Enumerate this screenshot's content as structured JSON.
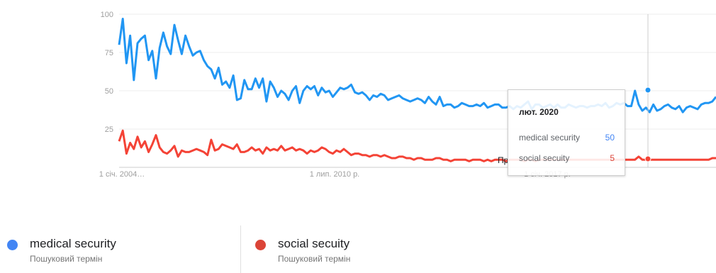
{
  "chart_data": {
    "type": "line",
    "y_ticks": [
      "100",
      "75",
      "50",
      "25"
    ],
    "ylim": [
      0,
      100
    ],
    "x_tick_labels": [
      "1 січ. 2004…",
      "1 лип. 2010 р.",
      "1 січ. 2017 р."
    ],
    "x_range": [
      "2004-01",
      "2020-12"
    ],
    "grid": true,
    "series": [
      {
        "name": "medical security",
        "color": "#2196f3",
        "values": [
          80,
          97,
          68,
          86,
          57,
          81,
          84,
          86,
          70,
          76,
          58,
          78,
          88,
          79,
          74,
          93,
          83,
          74,
          86,
          79,
          73,
          75,
          76,
          70,
          66,
          64,
          58,
          65,
          54,
          56,
          52,
          60,
          44,
          45,
          57,
          51,
          51,
          58,
          52,
          58,
          43,
          56,
          52,
          46,
          50,
          48,
          44,
          50,
          53,
          42,
          50,
          53,
          51,
          53,
          47,
          52,
          49,
          50,
          46,
          49,
          52,
          51,
          52,
          54,
          49,
          48,
          49,
          47,
          44,
          47,
          46,
          48,
          47,
          44,
          45,
          46,
          47,
          45,
          44,
          43,
          44,
          45,
          44,
          42,
          46,
          43,
          41,
          46,
          40,
          41,
          41,
          39,
          40,
          42,
          41,
          40,
          40,
          41,
          40,
          42,
          39,
          40,
          41,
          41,
          39,
          39,
          40,
          38,
          40,
          39,
          41,
          43,
          38,
          41,
          41,
          39,
          40,
          41,
          39,
          41,
          39,
          39,
          41,
          40,
          39,
          40,
          40,
          39,
          40,
          40,
          41,
          40,
          42,
          39,
          40,
          42,
          41,
          42,
          40,
          40,
          50,
          41,
          37,
          39,
          36,
          41,
          37,
          38,
          40,
          41,
          39,
          38,
          40,
          36,
          39,
          40,
          39,
          38,
          41,
          42,
          42,
          43,
          46
        ],
        "values_note_sampled": true
      },
      {
        "name": "social secuity",
        "color": "#f44336",
        "values": [
          17,
          24,
          9,
          16,
          12,
          20,
          13,
          17,
          10,
          15,
          21,
          13,
          10,
          9,
          11,
          14,
          7,
          11,
          10,
          10,
          11,
          12,
          11,
          10,
          8,
          18,
          11,
          12,
          15,
          14,
          13,
          12,
          15,
          10,
          10,
          11,
          13,
          11,
          12,
          9,
          13,
          11,
          12,
          11,
          14,
          11,
          12,
          13,
          11,
          12,
          11,
          9,
          11,
          10,
          11,
          13,
          12,
          10,
          9,
          11,
          10,
          12,
          10,
          8,
          9,
          9,
          8,
          8,
          7,
          8,
          8,
          7,
          8,
          7,
          6,
          6,
          7,
          7,
          6,
          6,
          5,
          6,
          6,
          5,
          5,
          5,
          6,
          6,
          5,
          5,
          4,
          5,
          5,
          5,
          5,
          4,
          5,
          5,
          5,
          4,
          5,
          4,
          5,
          5,
          5,
          4,
          5,
          5,
          5,
          5,
          4,
          5,
          5,
          4,
          5,
          5,
          5,
          5,
          5,
          5,
          5,
          5,
          5,
          5,
          5,
          5,
          5,
          5,
          5,
          5,
          5,
          5,
          5,
          5,
          5,
          5,
          5,
          5,
          5,
          5,
          5,
          7,
          5,
          5,
          5,
          5,
          5,
          5,
          5,
          5,
          5,
          5,
          5,
          5,
          5,
          5,
          5,
          5,
          5,
          5,
          5,
          6,
          6
        ]
      }
    ]
  },
  "tooltip": {
    "date": "лют. 2020",
    "rows": [
      {
        "term": "medical security",
        "value": "50",
        "color": "#4285f4"
      },
      {
        "term": "social secuity",
        "value": "5",
        "color": "#db4437"
      }
    ]
  },
  "hidden_label_fragment": "Пр",
  "legend": [
    {
      "term": "medical security",
      "subtitle": "Пошуковий термін",
      "color": "#4285f4"
    },
    {
      "term": "social secuity",
      "subtitle": "Пошуковий термін",
      "color": "#db4437"
    }
  ]
}
